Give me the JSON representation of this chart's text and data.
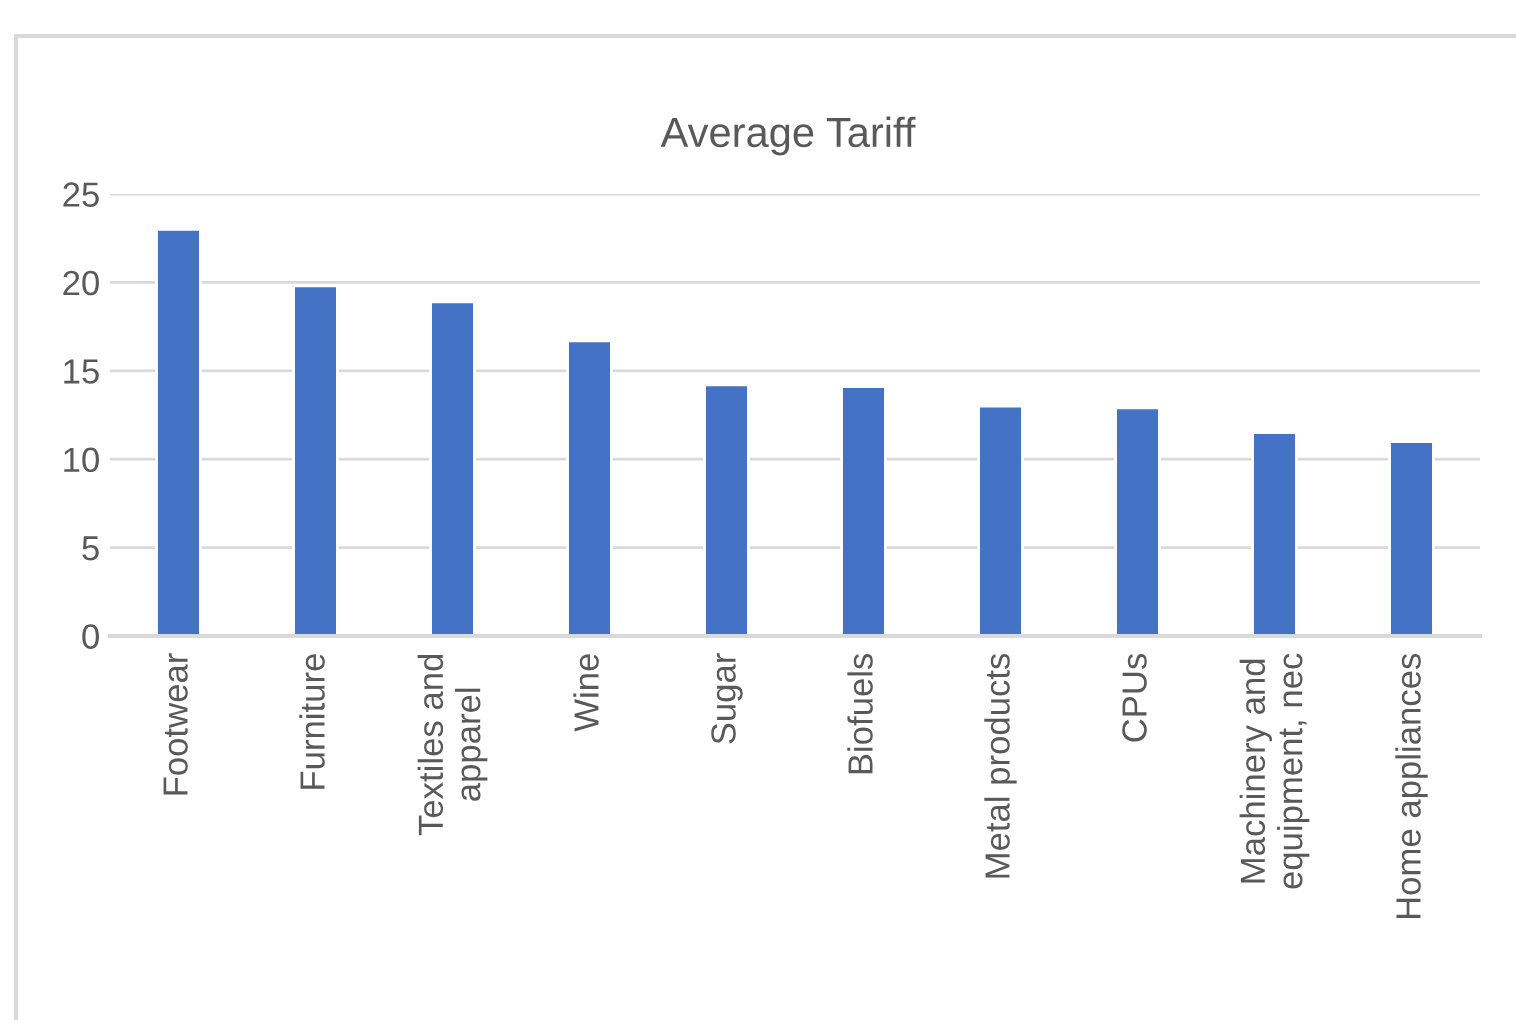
{
  "chart_data": {
    "type": "bar",
    "title": "Average Tariff",
    "categories": [
      "Footwear",
      "Furniture",
      "Textiles and apparel",
      "Wine",
      "Sugar",
      "Biofuels",
      "Metal products",
      "CPUs",
      "Machinery and equipment, nec",
      "Home appliances"
    ],
    "values": [
      23.0,
      19.8,
      18.9,
      16.7,
      14.2,
      14.1,
      13.0,
      12.9,
      11.5,
      11.0
    ],
    "color": "#4472c4",
    "ylim": [
      0,
      25
    ],
    "yticks": [
      0,
      5,
      10,
      15,
      20,
      25
    ],
    "grid": "y"
  }
}
